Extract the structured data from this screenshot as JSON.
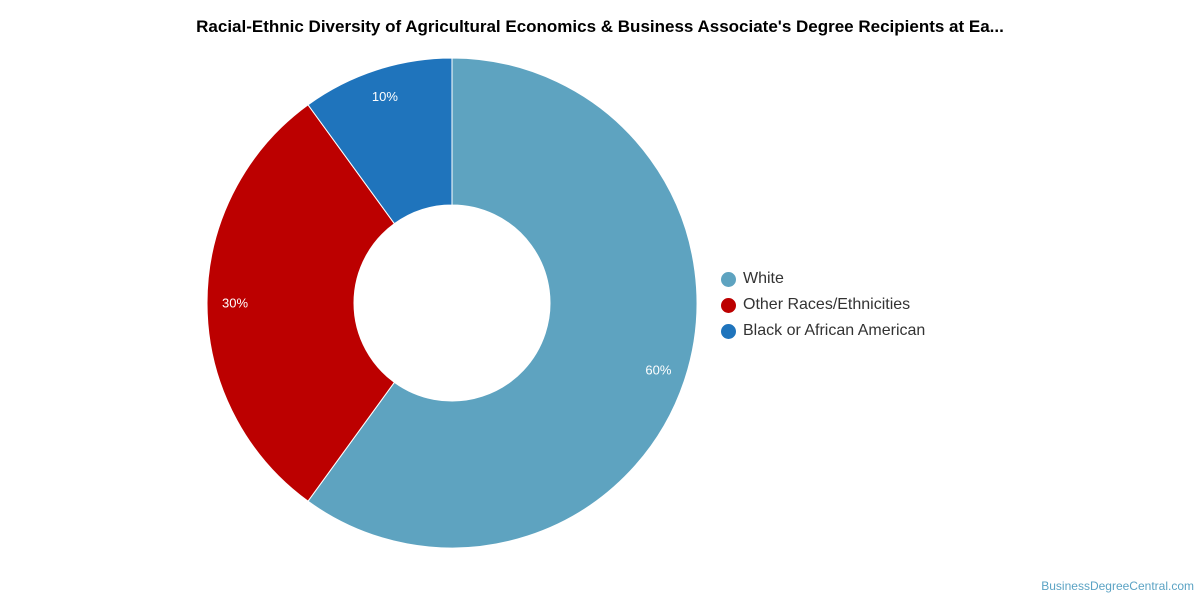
{
  "chart_data": {
    "type": "pie",
    "title": "Racial-Ethnic Diversity of Agricultural Economics & Business Associate's Degree Recipients at Ea...",
    "donut": true,
    "categories": [
      "White",
      "Other Races/Ethnicities",
      "Black or African American"
    ],
    "values": [
      60,
      30,
      10
    ],
    "labels": [
      "60%",
      "30%",
      "10%"
    ],
    "colors": [
      "#5ea3c0",
      "#bc0000",
      "#1f74bc"
    ],
    "legend": {
      "position": "right",
      "entries": [
        "White",
        "Other Races/Ethnicities",
        "Black or African American"
      ]
    }
  },
  "watermark": "BusinessDegreeCentral.com"
}
